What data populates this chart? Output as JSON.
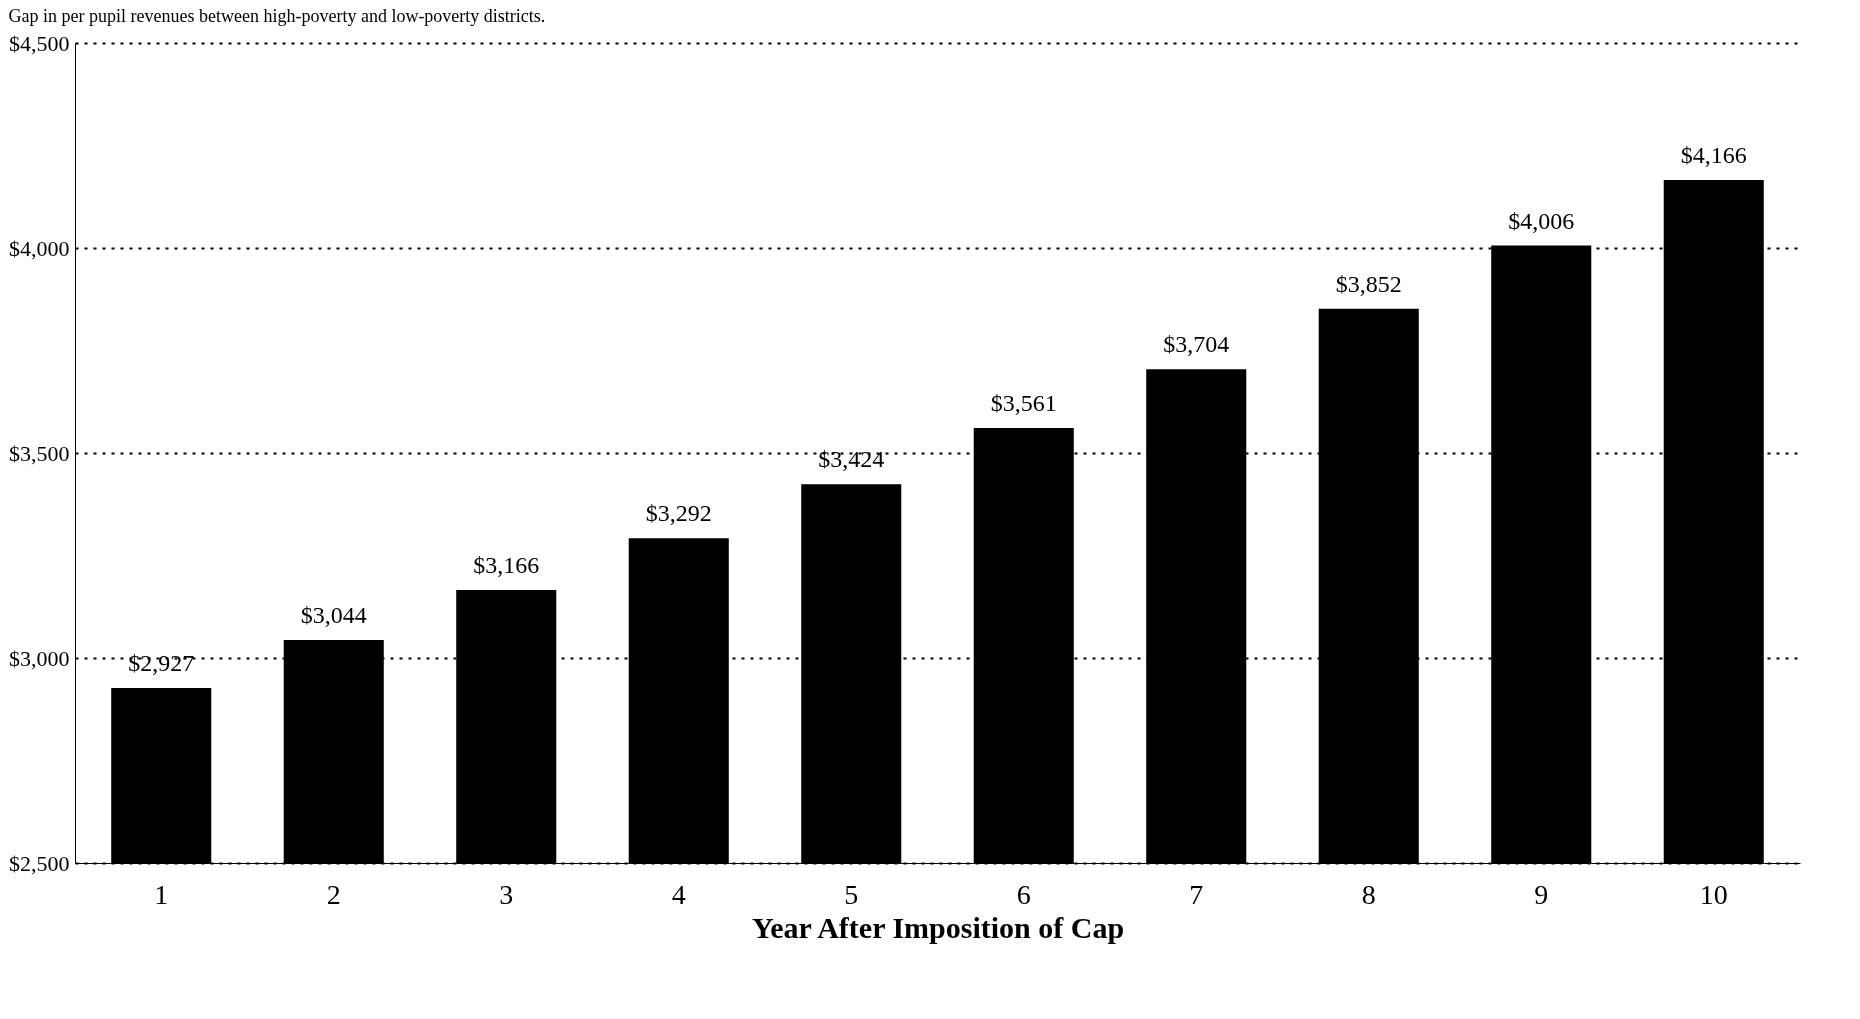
{
  "chart_data": {
    "type": "bar",
    "title": "Gap in per pupil revenues between high-poverty and low-poverty districts.",
    "xlabel": "Year After Imposition of Cap",
    "categories": [
      "1",
      "2",
      "3",
      "4",
      "5",
      "6",
      "7",
      "8",
      "9",
      "10"
    ],
    "values": [
      2927,
      3044,
      3166,
      3292,
      3424,
      3561,
      3704,
      3852,
      4006,
      4166
    ],
    "value_labels": [
      "$2,927",
      "$3,044",
      "$3,166",
      "$3,292",
      "$3,424",
      "$3,561",
      "$3,704",
      "$3,852",
      "$4,006",
      "$4,166"
    ],
    "color": "#000000",
    "ylim": [
      2500,
      4500
    ],
    "yticks": [
      {
        "value": 2500,
        "label": "$2,500"
      },
      {
        "value": 3000,
        "label": "$3,000"
      },
      {
        "value": 3500,
        "label": "$3,500"
      },
      {
        "value": 4000,
        "label": "$4,000"
      },
      {
        "value": 4500,
        "label": "$4,500"
      }
    ],
    "grid": "y"
  }
}
